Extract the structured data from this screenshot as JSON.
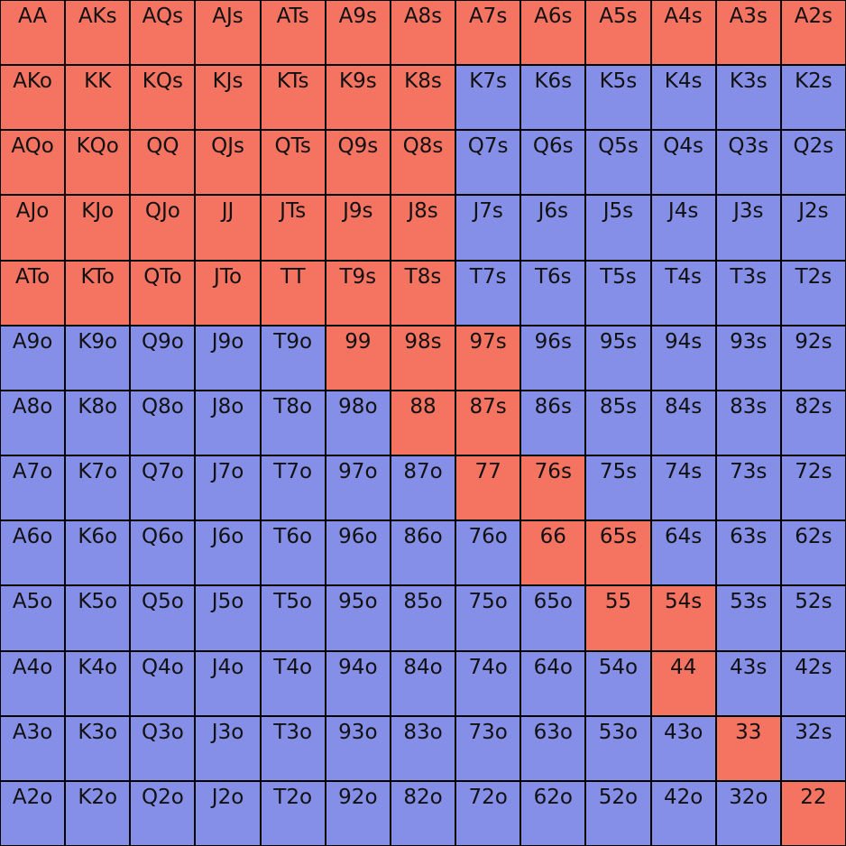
{
  "grid": {
    "ranks": [
      "A",
      "K",
      "Q",
      "J",
      "T",
      "9",
      "8",
      "7",
      "6",
      "5",
      "4",
      "3",
      "2"
    ],
    "hands": [
      [
        "AA",
        "AKs",
        "AQs",
        "AJs",
        "ATs",
        "A9s",
        "A8s",
        "A7s",
        "A6s",
        "A5s",
        "A4s",
        "A3s",
        "A2s"
      ],
      [
        "AKo",
        "KK",
        "KQs",
        "KJs",
        "KTs",
        "K9s",
        "K8s",
        "K7s",
        "K6s",
        "K5s",
        "K4s",
        "K3s",
        "K2s"
      ],
      [
        "AQo",
        "KQo",
        "QQ",
        "QJs",
        "QTs",
        "Q9s",
        "Q8s",
        "Q7s",
        "Q6s",
        "Q5s",
        "Q4s",
        "Q3s",
        "Q2s"
      ],
      [
        "AJo",
        "KJo",
        "QJo",
        "JJ",
        "JTs",
        "J9s",
        "J8s",
        "J7s",
        "J6s",
        "J5s",
        "J4s",
        "J3s",
        "J2s"
      ],
      [
        "ATo",
        "KTo",
        "QTo",
        "JTo",
        "TT",
        "T9s",
        "T8s",
        "T7s",
        "T6s",
        "T5s",
        "T4s",
        "T3s",
        "T2s"
      ],
      [
        "A9o",
        "K9o",
        "Q9o",
        "J9o",
        "T9o",
        "99",
        "98s",
        "97s",
        "96s",
        "95s",
        "94s",
        "93s",
        "92s"
      ],
      [
        "A8o",
        "K8o",
        "Q8o",
        "J8o",
        "T8o",
        "98o",
        "88",
        "87s",
        "86s",
        "85s",
        "84s",
        "83s",
        "82s"
      ],
      [
        "A7o",
        "K7o",
        "Q7o",
        "J7o",
        "T7o",
        "97o",
        "87o",
        "77",
        "76s",
        "75s",
        "74s",
        "73s",
        "72s"
      ],
      [
        "A6o",
        "K6o",
        "Q6o",
        "J6o",
        "T6o",
        "96o",
        "86o",
        "76o",
        "66",
        "65s",
        "64s",
        "63s",
        "62s"
      ],
      [
        "A5o",
        "K5o",
        "Q5o",
        "J5o",
        "T5o",
        "95o",
        "85o",
        "75o",
        "65o",
        "55",
        "54s",
        "53s",
        "52s"
      ],
      [
        "A4o",
        "K4o",
        "Q4o",
        "J4o",
        "T4o",
        "94o",
        "84o",
        "74o",
        "64o",
        "54o",
        "44",
        "43s",
        "42s"
      ],
      [
        "A3o",
        "K3o",
        "Q3o",
        "J3o",
        "T3o",
        "93o",
        "83o",
        "73o",
        "63o",
        "53o",
        "43o",
        "33",
        "32s"
      ],
      [
        "A2o",
        "K2o",
        "Q2o",
        "J2o",
        "T2o",
        "92o",
        "82o",
        "72o",
        "62o",
        "52o",
        "42o",
        "32o",
        "22"
      ]
    ],
    "selected": [
      "AA",
      "AKs",
      "AQs",
      "AJs",
      "ATs",
      "A9s",
      "A8s",
      "A7s",
      "A6s",
      "A5s",
      "A4s",
      "A3s",
      "A2s",
      "AKo",
      "KK",
      "KQs",
      "KJs",
      "KTs",
      "K9s",
      "K8s",
      "AQo",
      "KQo",
      "QQ",
      "QJs",
      "QTs",
      "Q9s",
      "Q8s",
      "AJo",
      "KJo",
      "QJo",
      "JJ",
      "JTs",
      "J9s",
      "J8s",
      "ATo",
      "KTo",
      "QTo",
      "JTo",
      "TT",
      "T9s",
      "T8s",
      "99",
      "98s",
      "97s",
      "88",
      "87s",
      "77",
      "76s",
      "66",
      "65s",
      "55",
      "54s",
      "44",
      "33",
      "22"
    ]
  },
  "colors": {
    "selected": "#F47361",
    "unselected": "#868FE8",
    "border": "#000000",
    "text": "#111111"
  }
}
